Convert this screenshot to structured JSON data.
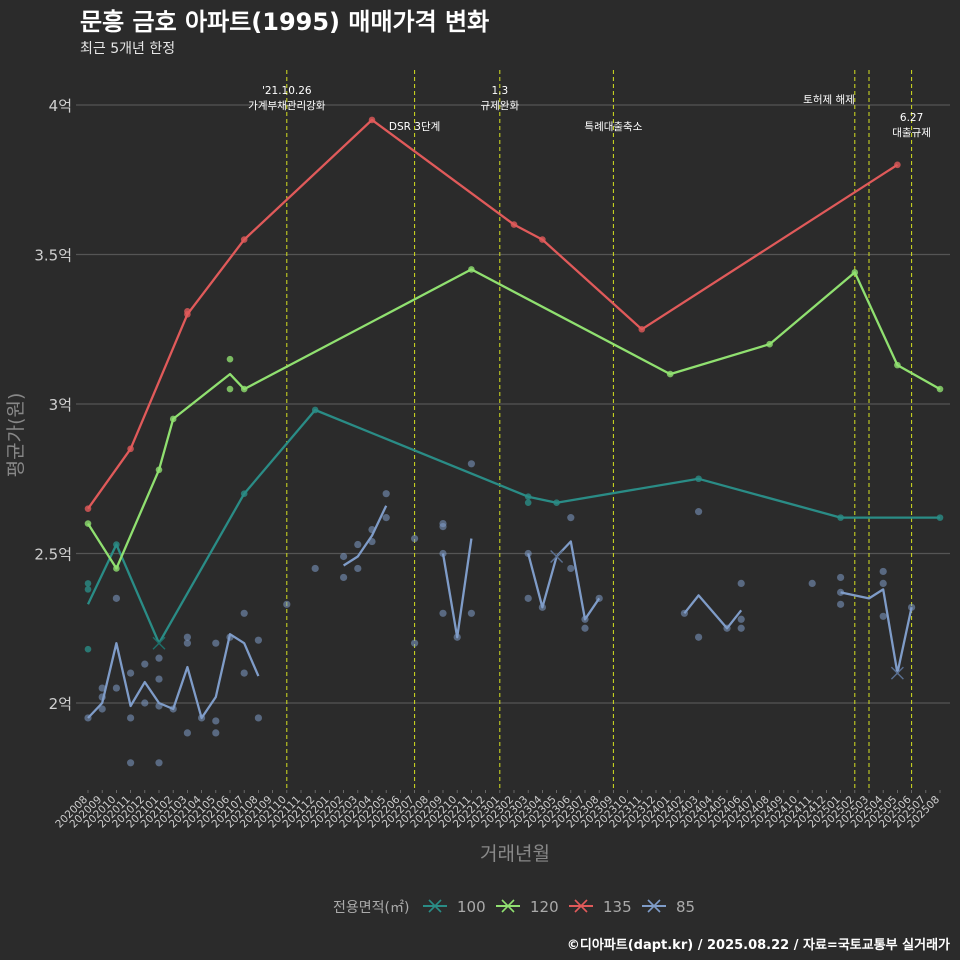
{
  "title": "문흥 금호 아파트(1995) 매매가격 변화",
  "subtitle": "최근 5개년 한정",
  "caption": "©디아파트(dapt.kr) / 2025.08.22 / 자료=국토교통부 실거래가",
  "chart_data": {
    "type": "line",
    "xlabel": "거래년월",
    "ylabel": "평균가(원)",
    "ylim": [
      1.7,
      4.15
    ],
    "y_ticks": [
      {
        "value": 2.0,
        "label": "2억"
      },
      {
        "value": 2.5,
        "label": "2.5억"
      },
      {
        "value": 3.0,
        "label": "3억"
      },
      {
        "value": 3.5,
        "label": "3.5억"
      },
      {
        "value": 4.0,
        "label": "4억"
      }
    ],
    "x_categories": [
      "202008",
      "202009",
      "202010",
      "202011",
      "202012",
      "202101",
      "202102",
      "202103",
      "202104",
      "202105",
      "202106",
      "202107",
      "202108",
      "202109",
      "202110",
      "202111",
      "202112",
      "202201",
      "202202",
      "202203",
      "202204",
      "202205",
      "202206",
      "202207",
      "202208",
      "202209",
      "202210",
      "202211",
      "202212",
      "202301",
      "202302",
      "202303",
      "202304",
      "202305",
      "202306",
      "202307",
      "202308",
      "202309",
      "202310",
      "202311",
      "202312",
      "202401",
      "202402",
      "202403",
      "202404",
      "202405",
      "202406",
      "202407",
      "202408",
      "202409",
      "202410",
      "202411",
      "202412",
      "202501",
      "202502",
      "202503",
      "202504",
      "202505",
      "202506",
      "202507",
      "202508"
    ],
    "legend_title": "전용면적(㎡)",
    "legend_position": "bottom",
    "grid": true,
    "series": [
      {
        "name": "100",
        "color": "#2a8c86",
        "line": [
          [
            0,
            2.33
          ],
          [
            2,
            2.53
          ],
          [
            5,
            2.2
          ],
          [
            11,
            2.7
          ],
          [
            16,
            2.98
          ],
          [
            31,
            2.69
          ],
          [
            33,
            2.67
          ],
          [
            43,
            2.75
          ],
          [
            53,
            2.62
          ],
          [
            60,
            2.62
          ]
        ],
        "points": [
          [
            0,
            2.4
          ],
          [
            0,
            2.38
          ],
          [
            0,
            2.18
          ],
          [
            2,
            2.53
          ],
          [
            11,
            2.7
          ],
          [
            16,
            2.98
          ],
          [
            31,
            2.69
          ],
          [
            31,
            2.67
          ],
          [
            33,
            2.67
          ],
          [
            43,
            2.75
          ],
          [
            53,
            2.62
          ],
          [
            60,
            2.62
          ]
        ],
        "crosses": [
          [
            5,
            2.2
          ]
        ]
      },
      {
        "name": "120",
        "color": "#90e070",
        "line": [
          [
            0,
            2.6
          ],
          [
            2,
            2.45
          ],
          [
            5,
            2.78
          ],
          [
            6,
            2.95
          ],
          [
            10,
            3.1
          ],
          [
            11,
            3.05
          ],
          [
            27,
            3.45
          ],
          [
            41,
            3.1
          ],
          [
            48,
            3.2
          ],
          [
            54,
            3.44
          ],
          [
            57,
            3.13
          ],
          [
            60,
            3.05
          ]
        ],
        "points": [
          [
            0,
            2.6
          ],
          [
            2,
            2.45
          ],
          [
            5,
            2.78
          ],
          [
            6,
            2.95
          ],
          [
            10,
            3.15
          ],
          [
            10,
            3.05
          ],
          [
            11,
            3.05
          ],
          [
            27,
            3.45
          ],
          [
            41,
            3.1
          ],
          [
            48,
            3.2
          ],
          [
            54,
            3.44
          ],
          [
            57,
            3.13
          ],
          [
            60,
            3.05
          ]
        ],
        "crosses": []
      },
      {
        "name": "135",
        "color": "#e05a5a",
        "line": [
          [
            0,
            2.65
          ],
          [
            3,
            2.85
          ],
          [
            7,
            3.3
          ],
          [
            11,
            3.55
          ],
          [
            20,
            3.95
          ],
          [
            30,
            3.6
          ],
          [
            32,
            3.55
          ],
          [
            39,
            3.25
          ],
          [
            57,
            3.8
          ]
        ],
        "points": [
          [
            0,
            2.65
          ],
          [
            3,
            2.85
          ],
          [
            7,
            3.31
          ],
          [
            7,
            3.3
          ],
          [
            11,
            3.55
          ],
          [
            20,
            3.95
          ],
          [
            30,
            3.6
          ],
          [
            32,
            3.55
          ],
          [
            39,
            3.25
          ],
          [
            57,
            3.8
          ]
        ],
        "crosses": []
      },
      {
        "name": "85",
        "color": "#7f9cc8",
        "line_segments": [
          [
            [
              0,
              1.95
            ],
            [
              1,
              2.0
            ],
            [
              2,
              2.2
            ],
            [
              3,
              1.99
            ],
            [
              4,
              2.07
            ],
            [
              5,
              2.0
            ],
            [
              6,
              1.98
            ],
            [
              7,
              2.12
            ],
            [
              8,
              1.95
            ],
            [
              9,
              2.02
            ],
            [
              10,
              2.23
            ],
            [
              11,
              2.2
            ],
            [
              12,
              2.09
            ]
          ],
          [
            [
              18,
              2.46
            ],
            [
              19,
              2.49
            ],
            [
              20,
              2.56
            ],
            [
              21,
              2.66
            ]
          ],
          [
            [
              25,
              2.5
            ],
            [
              26,
              2.22
            ],
            [
              27,
              2.55
            ]
          ],
          [
            [
              31,
              2.5
            ],
            [
              32,
              2.32
            ],
            [
              33,
              2.49
            ],
            [
              34,
              2.54
            ],
            [
              35,
              2.28
            ],
            [
              36,
              2.35
            ]
          ],
          [
            [
              42,
              2.3
            ],
            [
              43,
              2.36
            ],
            [
              45,
              2.25
            ],
            [
              46,
              2.31
            ]
          ],
          [
            [
              53,
              2.37
            ],
            [
              55,
              2.35
            ],
            [
              56,
              2.38
            ],
            [
              57,
              2.1
            ],
            [
              58,
              2.32
            ]
          ]
        ],
        "points": [
          [
            0,
            1.95
          ],
          [
            1,
            2.05
          ],
          [
            1,
            2.02
          ],
          [
            1,
            1.98
          ],
          [
            2,
            2.35
          ],
          [
            2,
            2.05
          ],
          [
            3,
            2.1
          ],
          [
            3,
            1.95
          ],
          [
            3,
            1.8
          ],
          [
            4,
            2.13
          ],
          [
            4,
            2.0
          ],
          [
            5,
            2.15
          ],
          [
            5,
            2.08
          ],
          [
            5,
            1.99
          ],
          [
            5,
            1.8
          ],
          [
            6,
            1.98
          ],
          [
            7,
            2.22
          ],
          [
            7,
            2.2
          ],
          [
            7,
            1.9
          ],
          [
            8,
            1.95
          ],
          [
            9,
            2.2
          ],
          [
            9,
            1.94
          ],
          [
            9,
            1.9
          ],
          [
            10,
            2.22
          ],
          [
            11,
            2.3
          ],
          [
            11,
            2.1
          ],
          [
            12,
            2.21
          ],
          [
            12,
            1.95
          ],
          [
            14,
            2.33
          ],
          [
            16,
            2.45
          ],
          [
            18,
            2.49
          ],
          [
            18,
            2.42
          ],
          [
            19,
            2.53
          ],
          [
            19,
            2.45
          ],
          [
            20,
            2.58
          ],
          [
            20,
            2.54
          ],
          [
            21,
            2.7
          ],
          [
            21,
            2.62
          ],
          [
            23,
            2.55
          ],
          [
            23,
            2.2
          ],
          [
            25,
            2.6
          ],
          [
            25,
            2.59
          ],
          [
            25,
            2.5
          ],
          [
            25,
            2.3
          ],
          [
            26,
            2.22
          ],
          [
            27,
            2.8
          ],
          [
            27,
            2.3
          ],
          [
            31,
            2.5
          ],
          [
            31,
            2.35
          ],
          [
            32,
            2.32
          ],
          [
            34,
            2.62
          ],
          [
            34,
            2.45
          ],
          [
            35,
            2.28
          ],
          [
            35,
            2.25
          ],
          [
            36,
            2.35
          ],
          [
            42,
            2.3
          ],
          [
            43,
            2.64
          ],
          [
            43,
            2.22
          ],
          [
            45,
            2.25
          ],
          [
            46,
            2.4
          ],
          [
            46,
            2.28
          ],
          [
            46,
            2.25
          ],
          [
            51,
            2.4
          ],
          [
            53,
            2.42
          ],
          [
            53,
            2.37
          ],
          [
            53,
            2.33
          ],
          [
            56,
            2.44
          ],
          [
            56,
            2.4
          ],
          [
            56,
            2.29
          ],
          [
            58,
            2.32
          ]
        ],
        "crosses": [
          [
            33,
            2.49
          ],
          [
            57,
            2.1
          ]
        ]
      }
    ],
    "annotations": [
      {
        "x": 14,
        "lines": [
          "'21.10.26",
          "가계부채관리강화"
        ],
        "label_y": [
          4.05,
          4.0
        ],
        "anchor": "middle"
      },
      {
        "x": 23,
        "lines": [
          "DSR 3단계"
        ],
        "label_y": [
          3.93
        ],
        "anchor": "middle"
      },
      {
        "x": 29,
        "lines": [
          "1.3",
          "규제완화"
        ],
        "label_y": [
          4.05,
          4.0
        ],
        "anchor": "middle"
      },
      {
        "x": 37,
        "lines": [
          "특례대출축소"
        ],
        "label_y": [
          3.93
        ],
        "anchor": "middle"
      },
      {
        "x": 54,
        "lines": [
          "토허제 해제"
        ],
        "label_y": [
          4.02
        ],
        "anchor": "end"
      },
      {
        "x": 55,
        "lines": [],
        "label_y": [],
        "anchor": "middle"
      },
      {
        "x": 58,
        "lines": [
          "6.27",
          "대출규제"
        ],
        "label_y": [
          3.96,
          3.91
        ],
        "anchor": "middle"
      }
    ]
  }
}
